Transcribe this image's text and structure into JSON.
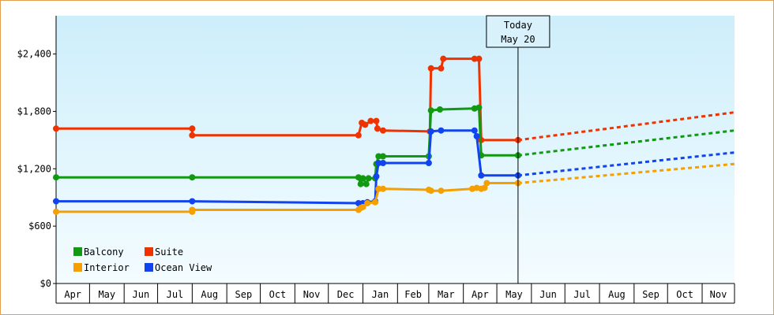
{
  "chart_data": {
    "type": "line",
    "title": "",
    "xlabel": "",
    "ylabel": "",
    "ylim": [
      0,
      2800
    ],
    "y_ticks": [
      {
        "value": 0,
        "label": "$0"
      },
      {
        "value": 600,
        "label": "$600"
      },
      {
        "value": 1200,
        "label": "$1,200"
      },
      {
        "value": 1800,
        "label": "$1,800"
      },
      {
        "value": 2400,
        "label": "$2,400"
      }
    ],
    "month_labels": [
      "Apr",
      "May",
      "Jun",
      "Jul",
      "Aug",
      "Sep",
      "Oct",
      "Nov",
      "Dec",
      "Jan",
      "Feb",
      "Mar",
      "Apr",
      "May",
      "Jun",
      "Jul",
      "Aug",
      "Sep",
      "Oct",
      "Nov"
    ],
    "x_start": "2024-04-01",
    "x_end": "2025-11-30",
    "today": {
      "line1": "Today",
      "line2": "May 20",
      "date": "2025-05-20"
    },
    "legend": [
      {
        "name": "Balcony",
        "color": "#119911"
      },
      {
        "name": "Suite",
        "color": "#ee3300"
      },
      {
        "name": "Interior",
        "color": "#f5a000"
      },
      {
        "name": "Ocean View",
        "color": "#1144ee"
      }
    ],
    "series": [
      {
        "name": "Suite",
        "color": "#ee3300",
        "points": [
          [
            "2024-04-01",
            1620
          ],
          [
            "2024-08-01",
            1620
          ],
          [
            "2024-08-01",
            1550
          ],
          [
            "2024-12-28",
            1550
          ],
          [
            "2024-12-31",
            1680
          ],
          [
            "2025-01-03",
            1660
          ],
          [
            "2025-01-08",
            1700
          ],
          [
            "2025-01-13",
            1700
          ],
          [
            "2025-01-14",
            1620
          ],
          [
            "2025-01-19",
            1600
          ],
          [
            "2025-03-02",
            1590
          ],
          [
            "2025-03-03",
            2250
          ],
          [
            "2025-03-12",
            2250
          ],
          [
            "2025-03-14",
            2350
          ],
          [
            "2025-04-11",
            2350
          ],
          [
            "2025-04-15",
            2350
          ],
          [
            "2025-04-17",
            1500
          ],
          [
            "2025-05-20",
            1500
          ]
        ],
        "projection": [
          [
            "2025-05-20",
            1500
          ],
          [
            "2025-11-30",
            1790
          ]
        ]
      },
      {
        "name": "Balcony",
        "color": "#119911",
        "points": [
          [
            "2024-04-01",
            1110
          ],
          [
            "2024-08-01",
            1110
          ],
          [
            "2024-12-28",
            1110
          ],
          [
            "2024-12-30",
            1040
          ],
          [
            "2025-01-01",
            1100
          ],
          [
            "2025-01-04",
            1040
          ],
          [
            "2025-01-06",
            1100
          ],
          [
            "2025-01-12",
            1100
          ],
          [
            "2025-01-13",
            1250
          ],
          [
            "2025-01-15",
            1330
          ],
          [
            "2025-01-19",
            1330
          ],
          [
            "2025-03-01",
            1330
          ],
          [
            "2025-03-03",
            1810
          ],
          [
            "2025-03-11",
            1820
          ],
          [
            "2025-04-11",
            1830
          ],
          [
            "2025-04-15",
            1840
          ],
          [
            "2025-04-17",
            1340
          ],
          [
            "2025-05-20",
            1340
          ]
        ],
        "projection": [
          [
            "2025-05-20",
            1340
          ],
          [
            "2025-11-30",
            1600
          ]
        ]
      },
      {
        "name": "Ocean View",
        "color": "#1144ee",
        "points": [
          [
            "2024-04-01",
            860
          ],
          [
            "2024-08-01",
            860
          ],
          [
            "2024-12-28",
            840
          ],
          [
            "2024-12-30",
            820
          ],
          [
            "2025-01-01",
            840
          ],
          [
            "2025-01-05",
            850
          ],
          [
            "2025-01-12",
            860
          ],
          [
            "2025-01-13",
            1120
          ],
          [
            "2025-01-15",
            1260
          ],
          [
            "2025-01-19",
            1260
          ],
          [
            "2025-03-01",
            1260
          ],
          [
            "2025-03-03",
            1590
          ],
          [
            "2025-03-12",
            1600
          ],
          [
            "2025-04-11",
            1600
          ],
          [
            "2025-04-13",
            1540
          ],
          [
            "2025-04-17",
            1130
          ],
          [
            "2025-05-20",
            1130
          ]
        ],
        "projection": [
          [
            "2025-05-20",
            1130
          ],
          [
            "2025-11-30",
            1370
          ]
        ]
      },
      {
        "name": "Interior",
        "color": "#f5a000",
        "points": [
          [
            "2024-04-01",
            750
          ],
          [
            "2024-08-01",
            750
          ],
          [
            "2024-08-01",
            770
          ],
          [
            "2024-12-28",
            770
          ],
          [
            "2024-12-30",
            790
          ],
          [
            "2025-01-01",
            800
          ],
          [
            "2025-01-05",
            840
          ],
          [
            "2025-01-12",
            850
          ],
          [
            "2025-01-15",
            990
          ],
          [
            "2025-01-19",
            990
          ],
          [
            "2025-03-01",
            980
          ],
          [
            "2025-03-03",
            970
          ],
          [
            "2025-03-12",
            970
          ],
          [
            "2025-04-09",
            990
          ],
          [
            "2025-04-13",
            1000
          ],
          [
            "2025-04-17",
            990
          ],
          [
            "2025-04-20",
            1000
          ],
          [
            "2025-04-22",
            1050
          ],
          [
            "2025-05-20",
            1050
          ]
        ],
        "projection": [
          [
            "2025-05-20",
            1050
          ],
          [
            "2025-11-30",
            1250
          ]
        ]
      }
    ]
  }
}
